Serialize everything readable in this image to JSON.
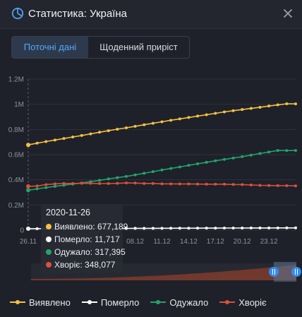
{
  "header": {
    "title": "Статистика: Україна",
    "icon": "chart-pie-icon",
    "close_icon": "close-icon"
  },
  "tabs": [
    {
      "label": "Поточні дані",
      "active": true
    },
    {
      "label": "Щоденний приріст",
      "active": false
    }
  ],
  "tooltip": {
    "date": "2020-11-26",
    "rows": [
      {
        "label": "Виявлено: 677,189",
        "color": "#f5c043"
      },
      {
        "label": "Померло: 11,717",
        "color": "#ffffff"
      },
      {
        "label": "Одужало: 317,395",
        "color": "#23a36b"
      },
      {
        "label": "Хворіє: 348,077",
        "color": "#d9513b"
      }
    ]
  },
  "legend": [
    {
      "label": "Виявлено",
      "color": "#f5c043"
    },
    {
      "label": "Померло",
      "color": "#ffffff"
    },
    {
      "label": "Одужало",
      "color": "#23a36b"
    },
    {
      "label": "Хворіє",
      "color": "#d9513b"
    }
  ],
  "chart_data": {
    "type": "line",
    "title": "",
    "xlabel": "",
    "ylabel": "",
    "ylim": [
      0,
      1200000
    ],
    "y_ticks": [
      "0",
      "0.2M",
      "0.4M",
      "0.6M",
      "0.8M",
      "1M",
      "1.2M"
    ],
    "x_ticks": [
      "26.11",
      "",
      "",
      "",
      "08.12",
      "11.12",
      "14.12",
      "17.12",
      "20.12",
      "23.12"
    ],
    "x": [
      "26.11",
      "27.11",
      "28.11",
      "29.11",
      "30.11",
      "01.12",
      "02.12",
      "03.12",
      "04.12",
      "05.12",
      "06.12",
      "07.12",
      "08.12",
      "09.12",
      "10.12",
      "11.12",
      "12.12",
      "13.12",
      "14.12",
      "15.12",
      "16.12",
      "17.12",
      "18.12",
      "19.12",
      "20.12",
      "21.12",
      "22.12",
      "23.12",
      "24.12",
      "25.12",
      "26.12"
    ],
    "grid": true,
    "legend_position": "bottom",
    "series": [
      {
        "name": "Виявлено",
        "color": "#f5c043",
        "values": [
          677189,
          691000,
          704000,
          716000,
          728000,
          740000,
          752000,
          765000,
          778000,
          790000,
          802000,
          813000,
          825000,
          837000,
          849000,
          861000,
          873000,
          884000,
          895000,
          906000,
          917000,
          928000,
          939000,
          949000,
          958000,
          967000,
          976000,
          986000,
          995000,
          1004000,
          1003000
        ]
      },
      {
        "name": "Померло",
        "color": "#ffffff",
        "values": [
          11717,
          11950,
          12180,
          12400,
          12620,
          12840,
          13060,
          13280,
          13500,
          13720,
          13940,
          14160,
          14380,
          14600,
          14820,
          15040,
          15260,
          15480,
          15700,
          15920,
          16140,
          16360,
          16580,
          16800,
          17000,
          17200,
          17400,
          17600,
          17800,
          18000,
          18100
        ]
      },
      {
        "name": "Одужало",
        "color": "#23a36b",
        "values": [
          317395,
          328000,
          338000,
          348000,
          357000,
          366000,
          375000,
          385000,
          396000,
          407000,
          417000,
          427000,
          439000,
          452000,
          465000,
          478000,
          490000,
          502000,
          515000,
          527000,
          539000,
          551000,
          562000,
          573000,
          584000,
          596000,
          609000,
          621000,
          633000,
          632000,
          633000
        ]
      },
      {
        "name": "Хворіє",
        "color": "#d9513b",
        "values": [
          348077,
          351000,
          362000,
          368000,
          371000,
          371000,
          372000,
          372000,
          370000,
          370000,
          372000,
          375000,
          374000,
          371000,
          371000,
          368000,
          368000,
          367000,
          367000,
          366000,
          365000,
          365000,
          365000,
          363000,
          362000,
          359000,
          356000,
          355000,
          354000,
          353000,
          352000
        ]
      }
    ]
  }
}
